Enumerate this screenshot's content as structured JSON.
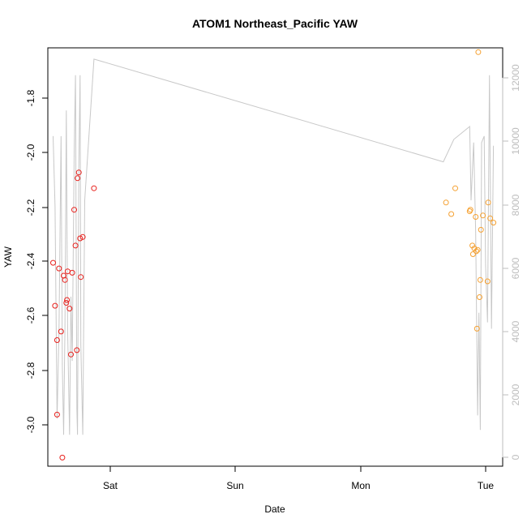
{
  "chart_data": {
    "type": "scatter",
    "title": "ATOM1 Northeast_Pacific YAW",
    "xlabel": "Date",
    "ylabel": "YAW",
    "x_ticks": [
      "Sat",
      "Sun",
      "Mon",
      "Tue"
    ],
    "y_ticks": [
      "-3.0",
      "-2.8",
      "-2.6",
      "-2.4",
      "-2.2",
      "-2.0",
      "-1.8"
    ],
    "ylim": [
      -3.12,
      -1.66
    ],
    "y2_ticks": [
      "0",
      "2000",
      "4000",
      "6000",
      "8000",
      "10000",
      "12000"
    ],
    "y2lim": [
      -280,
      12750
    ],
    "xlim_days": [
      -0.4,
      3.05
    ],
    "colors": {
      "series_red": "#e8201c",
      "series_orange": "#f5a030",
      "line_gray": "#c8c8c8",
      "axis": "#000000",
      "right_axis": "#bdbdbd"
    },
    "series": [
      {
        "color": "#e8201c",
        "points": [
          [
            -0.36,
            -2.41
          ],
          [
            -0.345,
            -2.56
          ],
          [
            -0.33,
            -2.94
          ],
          [
            -0.33,
            -2.68
          ],
          [
            -0.315,
            -2.43
          ],
          [
            -0.3,
            -2.65
          ],
          [
            -0.29,
            -3.09
          ],
          [
            -0.28,
            -2.455
          ],
          [
            -0.27,
            -2.47
          ],
          [
            -0.26,
            -2.55
          ],
          [
            -0.255,
            -2.54
          ],
          [
            -0.25,
            -2.44
          ],
          [
            -0.235,
            -2.57
          ],
          [
            -0.225,
            -2.73
          ],
          [
            -0.215,
            -2.445
          ],
          [
            -0.2,
            -2.225
          ],
          [
            -0.19,
            -2.35
          ],
          [
            -0.18,
            -2.715
          ],
          [
            -0.175,
            -2.115
          ],
          [
            -0.165,
            -2.095
          ],
          [
            -0.155,
            -2.325
          ],
          [
            -0.15,
            -2.46
          ],
          [
            -0.135,
            -2.32
          ],
          [
            -0.05,
            -2.15
          ]
        ]
      },
      {
        "color": "#f5a030",
        "points": [
          [
            2.62,
            -2.2
          ],
          [
            2.66,
            -2.24
          ],
          [
            2.69,
            -2.15
          ],
          [
            2.8,
            -2.23
          ],
          [
            2.805,
            -2.225
          ],
          [
            2.82,
            -2.35
          ],
          [
            2.825,
            -2.38
          ],
          [
            2.835,
            -2.36
          ],
          [
            2.845,
            -2.25
          ],
          [
            2.85,
            -2.37
          ],
          [
            2.855,
            -2.64
          ],
          [
            2.86,
            -2.365
          ],
          [
            2.865,
            -1.675
          ],
          [
            2.875,
            -2.53
          ],
          [
            2.88,
            -2.47
          ],
          [
            2.885,
            -2.295
          ],
          [
            2.9,
            -2.245
          ],
          [
            2.935,
            -2.475
          ],
          [
            2.94,
            -2.2
          ],
          [
            2.955,
            -2.255
          ],
          [
            2.98,
            -2.27
          ]
        ]
      }
    ],
    "line_series": {
      "color": "#c8c8c8",
      "points": [
        [
          -0.36,
          10000
        ],
        [
          -0.345,
          7800
        ],
        [
          -0.33,
          1200
        ],
        [
          -0.315,
          4000
        ],
        [
          -0.3,
          10000
        ],
        [
          -0.29,
          2800
        ],
        [
          -0.28,
          700
        ],
        [
          -0.27,
          4000
        ],
        [
          -0.26,
          10800
        ],
        [
          -0.25,
          4000
        ],
        [
          -0.235,
          700
        ],
        [
          -0.225,
          5000
        ],
        [
          -0.215,
          3000
        ],
        [
          -0.2,
          9500
        ],
        [
          -0.19,
          11900
        ],
        [
          -0.18,
          1500
        ],
        [
          -0.175,
          700
        ],
        [
          -0.165,
          9000
        ],
        [
          -0.155,
          11900
        ],
        [
          -0.15,
          3500
        ],
        [
          -0.135,
          700
        ],
        [
          -0.12,
          8000
        ],
        [
          -0.05,
          12400
        ],
        [
          2.6,
          9200
        ],
        [
          2.68,
          9900
        ],
        [
          2.8,
          10300
        ],
        [
          2.81,
          8000
        ],
        [
          2.83,
          9800
        ],
        [
          2.845,
          7000
        ],
        [
          2.86,
          1300
        ],
        [
          2.87,
          4500
        ],
        [
          2.88,
          850
        ],
        [
          2.89,
          9800
        ],
        [
          2.91,
          10000
        ],
        [
          2.92,
          6000
        ],
        [
          2.935,
          4200
        ],
        [
          2.95,
          11900
        ],
        [
          2.965,
          4000
        ],
        [
          2.98,
          9700
        ]
      ]
    }
  }
}
